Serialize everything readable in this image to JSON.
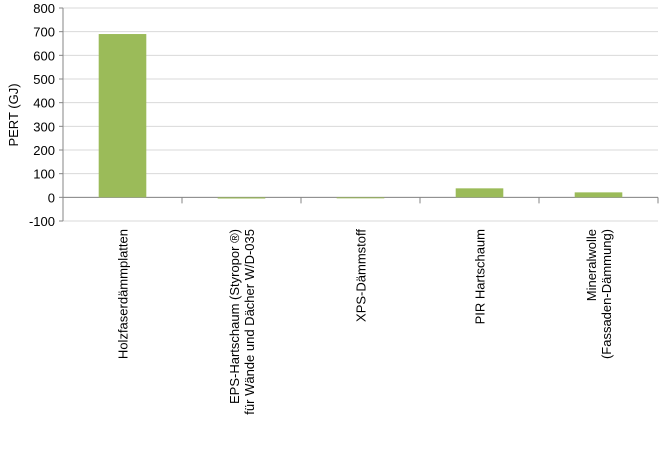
{
  "chart_data": {
    "type": "bar",
    "y_label": "PERT (GJ)",
    "categories": [
      "Holzfaserdämmplatten",
      "EPS-Hartschaum (Styropor ®)\nfür Wände und Dächer W/D-035",
      "XPS-Dämmstoff",
      "PIR Hartschaum",
      "Mineralwolle\n(Fassaden-Dämmung)"
    ],
    "values": [
      690,
      -5,
      -3,
      38,
      21
    ],
    "color": "#9bbb59",
    "ylim": [
      -100,
      800
    ],
    "yticks": [
      -100,
      0,
      100,
      200,
      300,
      400,
      500,
      600,
      700,
      800
    ],
    "grid": true
  }
}
